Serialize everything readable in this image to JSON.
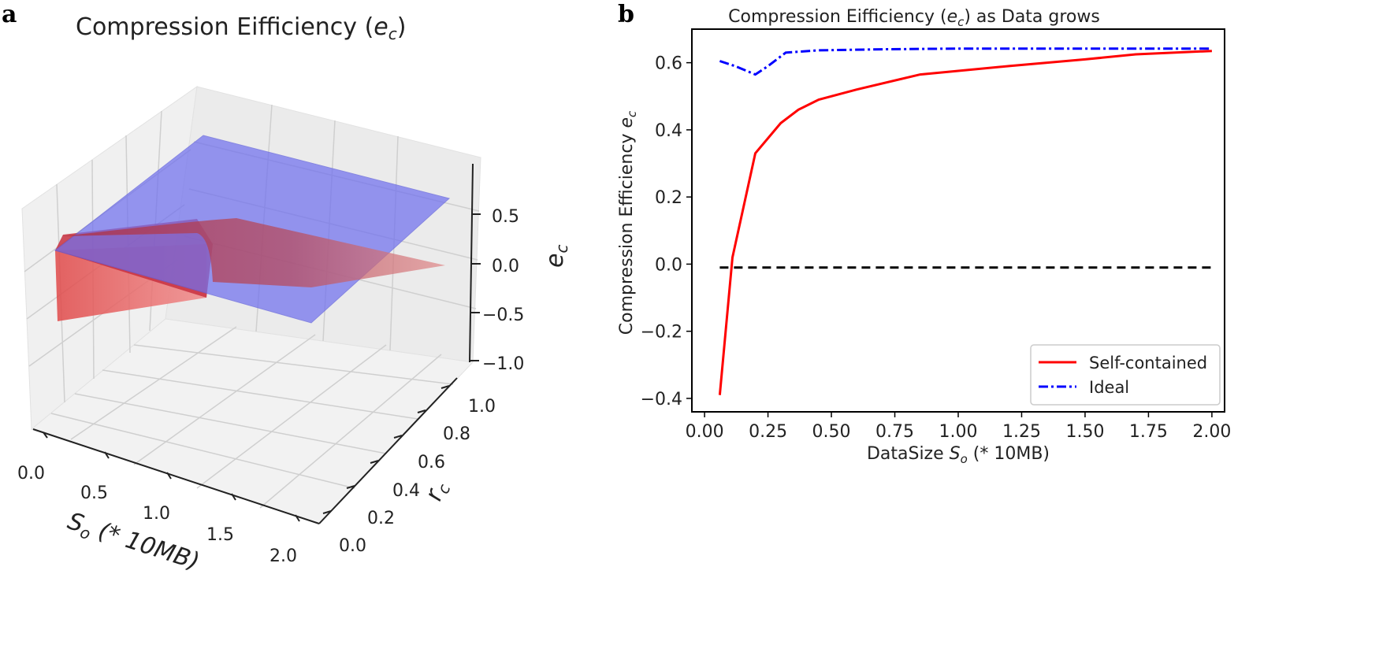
{
  "panels": {
    "a_label": "a",
    "b_label": "b"
  },
  "colors": {
    "self_contained": "#ff0000",
    "ideal": "#0000ff",
    "zero": "#000000",
    "blue_plane": "#7878f0",
    "red_surface": "#e05a5a"
  },
  "chart_data": [
    {
      "type": "surface3d",
      "title_prefix": "Compression Eifficiency (",
      "title_var": "e",
      "title_sub": "c",
      "title_suffix": ")",
      "xlabel_var": "S",
      "xlabel_sub": "o",
      "xlabel_rest": " (* 10MB)",
      "ylabel_var": "r",
      "ylabel_sub": "c",
      "zlabel_var": "e",
      "zlabel_sub": "c",
      "x_ticks": [
        "0.0",
        "0.5",
        "1.0",
        "1.5",
        "2.0"
      ],
      "y_ticks": [
        "0.0",
        "0.2",
        "0.4",
        "0.6",
        "0.8",
        "1.0"
      ],
      "z_ticks": [
        "0.5",
        "0.0",
        "−0.5",
        "−1.0"
      ],
      "xlim": [
        0,
        2
      ],
      "ylim": [
        0,
        1
      ],
      "zlim": [
        -1,
        0.9
      ],
      "surfaces": [
        {
          "name": "Ideal plane",
          "color": "blue",
          "approx_value": 0.64
        },
        {
          "name": "Self-contained surface",
          "color": "red"
        }
      ]
    },
    {
      "type": "line",
      "title_prefix": "Compression Eifficiency (",
      "title_var": "e",
      "title_sub": "c",
      "title_suffix": ") as Data grows",
      "xlabel_prefix": "DataSize ",
      "xlabel_var": "S",
      "xlabel_sub": "o",
      "xlabel_suffix": " (* 10MB)",
      "ylabel_prefix": "Compression Efficiency ",
      "ylabel_var": "e",
      "ylabel_sub": "c",
      "xlim": [
        -0.05,
        2.05
      ],
      "ylim": [
        -0.44,
        0.7
      ],
      "x_ticks": [
        "0.00",
        "0.25",
        "0.50",
        "0.75",
        "1.00",
        "1.25",
        "1.50",
        "1.75",
        "2.00"
      ],
      "x_tick_values": [
        0,
        0.25,
        0.5,
        0.75,
        1.0,
        1.25,
        1.5,
        1.75,
        2.0
      ],
      "y_ticks": [
        "0.6",
        "0.4",
        "0.2",
        "0.0",
        "−0.2",
        "−0.4"
      ],
      "y_tick_values": [
        0.6,
        0.4,
        0.2,
        0.0,
        -0.2,
        -0.4
      ],
      "legend_position": "lower-right",
      "series": [
        {
          "name": "Self-contained",
          "style": "solid",
          "x": [
            0.06,
            0.11,
            0.2,
            0.3,
            0.37,
            0.45,
            0.6,
            0.85,
            1.2,
            1.5,
            1.7,
            2.0
          ],
          "y": [
            -0.39,
            0.02,
            0.33,
            0.42,
            0.46,
            0.49,
            0.52,
            0.565,
            0.59,
            0.61,
            0.625,
            0.635
          ]
        },
        {
          "name": "Ideal",
          "style": "dashdot",
          "x": [
            0.06,
            0.12,
            0.2,
            0.25,
            0.32,
            0.45,
            0.7,
            1.0,
            1.5,
            2.0
          ],
          "y": [
            0.605,
            0.59,
            0.565,
            0.59,
            0.63,
            0.637,
            0.64,
            0.642,
            0.642,
            0.642
          ]
        },
        {
          "name": "zero-baseline",
          "style": "dashed",
          "x": [
            0.06,
            2.0
          ],
          "y": [
            -0.01,
            -0.01
          ]
        }
      ],
      "legend": [
        {
          "label": "Self-contained",
          "style": "solid"
        },
        {
          "label": "Ideal",
          "style": "dashdot"
        }
      ]
    }
  ]
}
